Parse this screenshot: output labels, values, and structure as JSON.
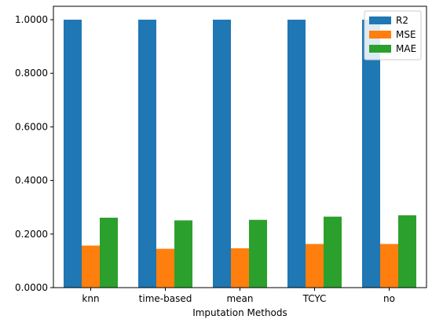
{
  "chart_data": {
    "type": "bar",
    "title": "",
    "xlabel": "Imputation Methods",
    "ylabel": "",
    "categories": [
      "knn",
      "time-based",
      "mean",
      "TCYC",
      "no"
    ],
    "series": [
      {
        "name": "R2",
        "color": "#1f77b4",
        "values": [
          1.0,
          1.0,
          1.0,
          1.0,
          1.0
        ]
      },
      {
        "name": "MSE",
        "color": "#ff7f0e",
        "values": [
          0.157,
          0.145,
          0.147,
          0.163,
          0.163
        ]
      },
      {
        "name": "MAE",
        "color": "#2ca02c",
        "values": [
          0.261,
          0.251,
          0.253,
          0.265,
          0.27
        ]
      }
    ],
    "yticks": [
      {
        "value": 0.0,
        "label": "0.0000"
      },
      {
        "value": 0.2,
        "label": "0.2000"
      },
      {
        "value": 0.4,
        "label": "0.4000"
      },
      {
        "value": 0.6,
        "label": "0.6000"
      },
      {
        "value": 0.8,
        "label": "0.8000"
      },
      {
        "value": 1.0,
        "label": "1.0000"
      }
    ],
    "ylim": [
      0,
      1.05
    ],
    "grid": false,
    "legend_position": "top-right"
  }
}
